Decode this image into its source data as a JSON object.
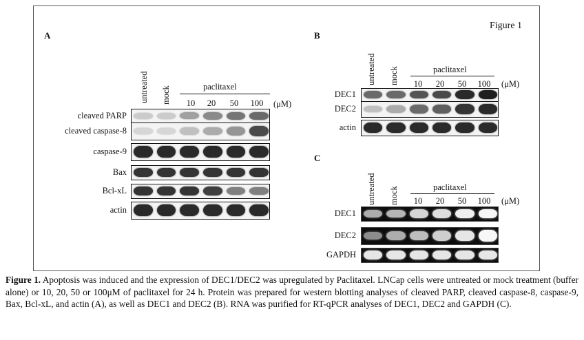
{
  "figure_title": "Figure 1",
  "panels": {
    "A": {
      "label": "A",
      "lanes": {
        "untreated": "untreated",
        "mock": "mock",
        "treatment": "paclitaxel",
        "concs": [
          "10",
          "20",
          "50",
          "100"
        ],
        "unit": "(μM)"
      },
      "rows": [
        {
          "label": "cleaved PARP",
          "intensities": [
            0.15,
            0.15,
            0.35,
            0.45,
            0.55,
            0.6
          ]
        },
        {
          "label": "cleaved caspase-8",
          "intensities": [
            0.1,
            0.1,
            0.2,
            0.3,
            0.4,
            0.75
          ]
        },
        {
          "label": "caspase-9",
          "intensities": [
            0.9,
            0.9,
            0.9,
            0.9,
            0.9,
            0.9
          ]
        },
        {
          "label": "Bax",
          "intensities": [
            0.85,
            0.85,
            0.85,
            0.85,
            0.85,
            0.85
          ]
        },
        {
          "label": "Bcl-xL",
          "intensities": [
            0.85,
            0.85,
            0.85,
            0.8,
            0.5,
            0.5
          ]
        },
        {
          "label": "actin",
          "intensities": [
            0.9,
            0.9,
            0.9,
            0.9,
            0.9,
            0.9
          ]
        }
      ]
    },
    "B": {
      "label": "B",
      "lanes": {
        "untreated": "untreated",
        "mock": "mock",
        "treatment": "paclitaxel",
        "concs": [
          "10",
          "20",
          "50",
          "100"
        ],
        "unit": "(μM)"
      },
      "rows": [
        {
          "label": "DEC1",
          "intensities": [
            0.6,
            0.6,
            0.7,
            0.75,
            0.9,
            0.95
          ]
        },
        {
          "label": "DEC2",
          "intensities": [
            0.2,
            0.3,
            0.6,
            0.65,
            0.85,
            0.9
          ]
        },
        {
          "label": "actin",
          "intensities": [
            0.9,
            0.9,
            0.9,
            0.9,
            0.9,
            0.9
          ]
        }
      ]
    },
    "C": {
      "label": "C",
      "lanes": {
        "untreated": "untreated",
        "mock": "mock",
        "treatment": "paclitaxel",
        "concs": [
          "10",
          "20",
          "50",
          "100"
        ],
        "unit": "(μM)"
      },
      "rows": [
        {
          "label": "DEC1",
          "intensities": [
            0.5,
            0.55,
            0.75,
            0.8,
            0.9,
            0.95
          ]
        },
        {
          "label": "DEC2",
          "intensities": [
            0.3,
            0.5,
            0.6,
            0.7,
            0.85,
            0.95
          ]
        },
        {
          "label": "GAPDH",
          "intensities": [
            0.85,
            0.85,
            0.85,
            0.85,
            0.85,
            0.85
          ]
        }
      ]
    }
  },
  "caption": {
    "bold": "Figure 1.",
    "text": " Apoptosis was induced and the expression of DEC1/DEC2 was upregulated by Paclitaxel. LNCap cells were untreated or mock treatment (buffer alone) or 10, 20, 50 or 100μM of paclitaxel for 24 h. Protein was prepared for western blotting analyses of cleaved PARP, cleaved caspase-8, caspase-9, Bax, Bcl-xL, and actin (A), as well as DEC1 and DEC2 (B). RNA was purified for RT-qPCR analyses of DEC1, DEC2 and GAPDH (C)."
  }
}
